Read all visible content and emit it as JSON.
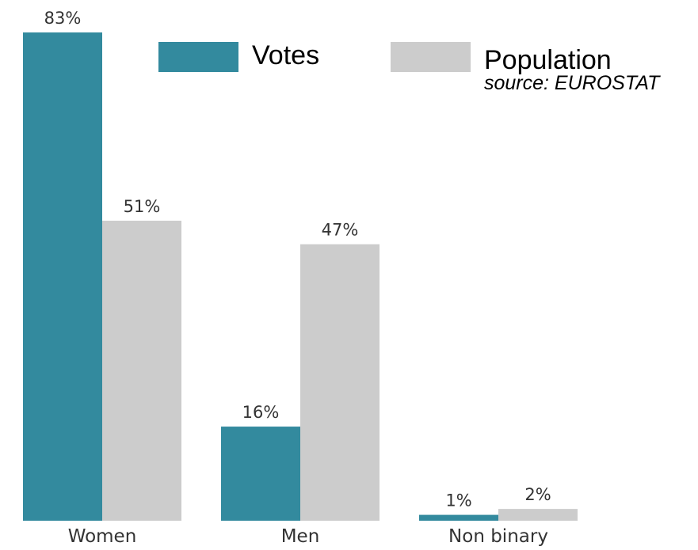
{
  "chart_data": {
    "type": "bar",
    "categories": [
      "Women",
      "Men",
      "Non binary"
    ],
    "series": [
      {
        "name": "Votes",
        "values": [
          83,
          16,
          1
        ],
        "labels": [
          "83%",
          "16%",
          "1%"
        ],
        "color": "#338a9e"
      },
      {
        "name": "Population",
        "values": [
          51,
          47,
          2
        ],
        "labels": [
          "51%",
          "47%",
          "2%"
        ],
        "color": "#cccccc"
      }
    ],
    "ylim": [
      0,
      83
    ],
    "grid": false,
    "legend_position": "top-right",
    "annotation": "source: EUROSTAT"
  }
}
